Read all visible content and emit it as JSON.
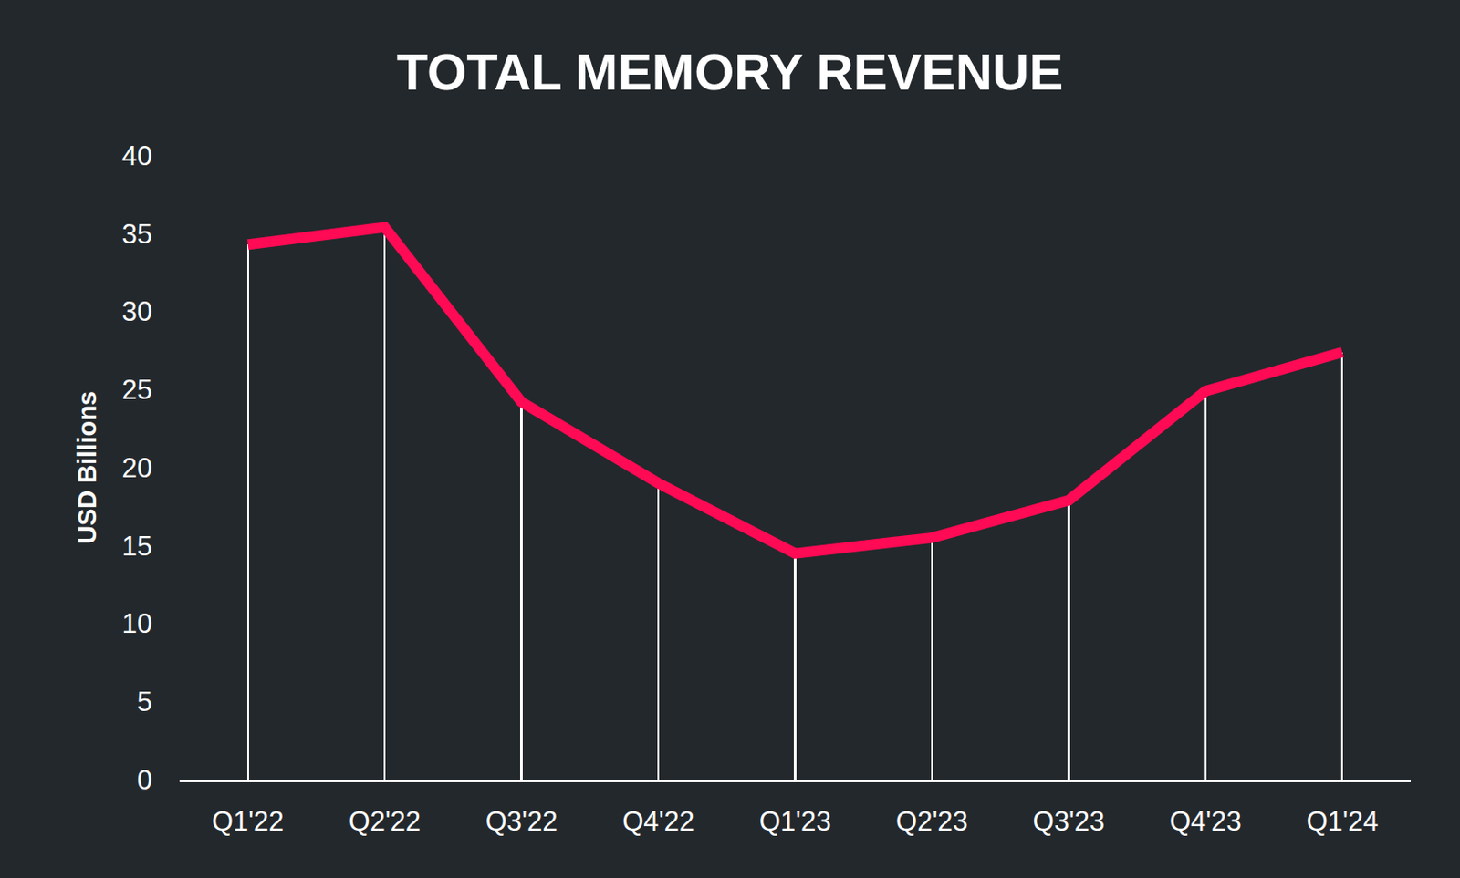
{
  "chart_data": {
    "type": "line",
    "title": "TOTAL MEMORY REVENUE",
    "y_label": "USD Billions",
    "categories": [
      "Q1'22",
      "Q2'22",
      "Q3'22",
      "Q4'22",
      "Q1'23",
      "Q2'23",
      "Q3'23",
      "Q4'23",
      "Q1'24"
    ],
    "values": [
      34.3,
      35.4,
      24.2,
      19.0,
      14.5,
      15.5,
      17.9,
      24.9,
      27.4
    ],
    "color": "#ff0a54",
    "ylim": [
      0,
      40
    ],
    "yticks": [
      0,
      5,
      10,
      15,
      20,
      25,
      30,
      35,
      40
    ],
    "grid": false
  }
}
